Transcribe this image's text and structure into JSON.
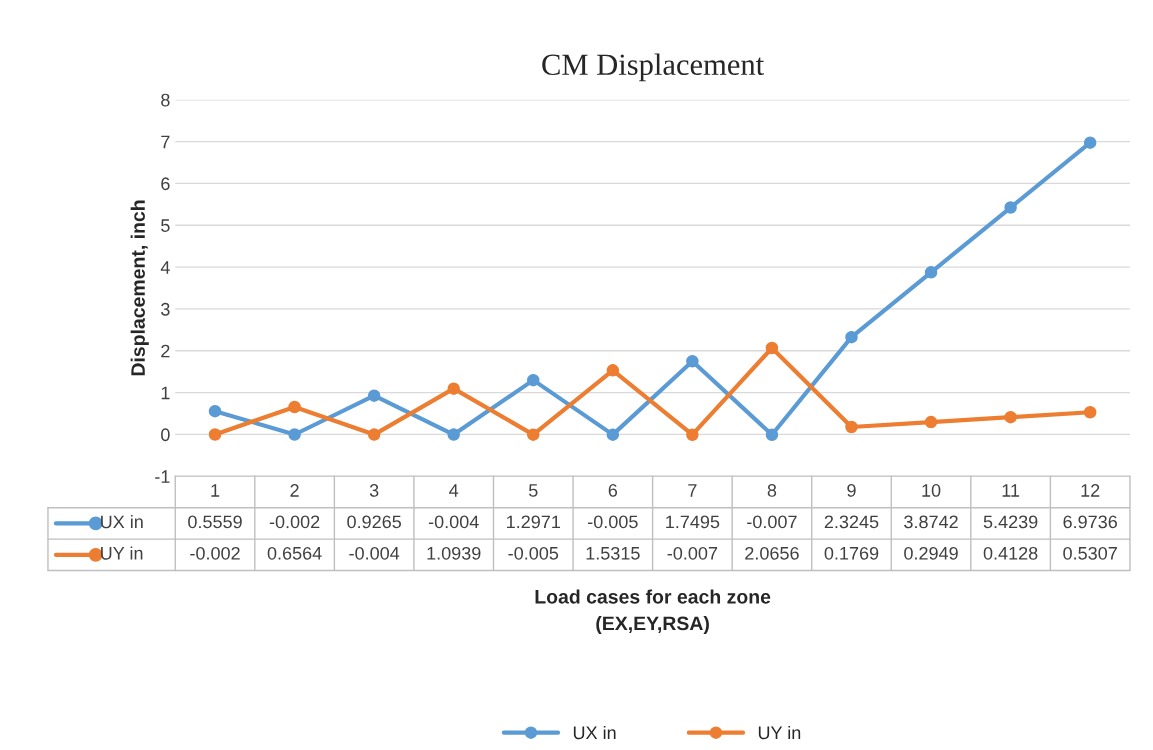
{
  "chart_data": {
    "type": "line",
    "title": "CM Displacement",
    "xlabel": "Load cases for each zone\n(EX,EY,RSA)",
    "ylabel": "Displacement, inch",
    "categories": [
      "1",
      "2",
      "3",
      "4",
      "5",
      "6",
      "7",
      "8",
      "9",
      "10",
      "11",
      "12"
    ],
    "series": [
      {
        "name": "UX in",
        "color": "#5b9bd5",
        "values": [
          0.5559,
          -0.002,
          0.9265,
          -0.004,
          1.2971,
          -0.005,
          1.7495,
          -0.007,
          2.3245,
          3.8742,
          5.4239,
          6.9736
        ]
      },
      {
        "name": "UY in",
        "color": "#ed7d31",
        "values": [
          -0.002,
          0.6564,
          -0.004,
          1.0939,
          -0.005,
          1.5315,
          -0.007,
          2.0656,
          0.1769,
          0.2949,
          0.4128,
          0.5307
        ]
      }
    ],
    "ylim": [
      -1,
      8
    ],
    "yticks": [
      -1,
      0,
      1,
      2,
      3,
      4,
      5,
      6,
      7,
      8
    ],
    "grid": "y",
    "legend": "bottom",
    "marker": "circle",
    "line_style": "solid",
    "data_labels": true
  }
}
